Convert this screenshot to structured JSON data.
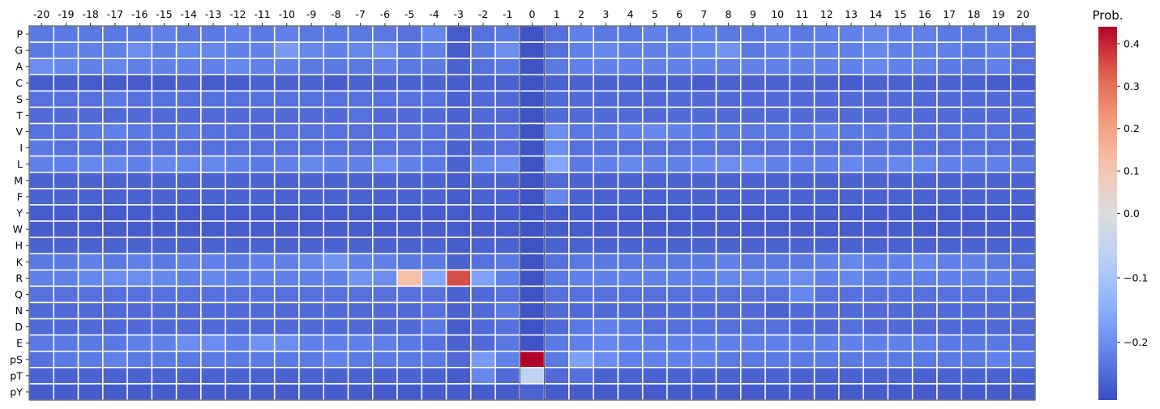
{
  "chart_data": {
    "type": "heatmap",
    "x_ticks": [
      "-20",
      "-19",
      "-18",
      "-17",
      "-16",
      "-15",
      "-14",
      "-13",
      "-12",
      "-11",
      "-10",
      "-9",
      "-8",
      "-7",
      "-6",
      "-5",
      "-4",
      "-3",
      "-2",
      "-1",
      "0",
      "1",
      "2",
      "3",
      "4",
      "5",
      "6",
      "7",
      "8",
      "9",
      "10",
      "11",
      "12",
      "13",
      "14",
      "15",
      "16",
      "17",
      "18",
      "19",
      "20"
    ],
    "y_ticks": [
      "P",
      "G",
      "A",
      "C",
      "S",
      "T",
      "V",
      "I",
      "L",
      "M",
      "F",
      "Y",
      "W",
      "H",
      "K",
      "R",
      "Q",
      "N",
      "D",
      "E",
      "pS",
      "pT",
      "pY"
    ],
    "x_axis_position": "top",
    "colormap": "coolwarm",
    "colorbar": {
      "title": "Prob.",
      "range": [
        -0.29,
        0.44
      ],
      "ticks": [
        -0.2,
        -0.1,
        0.0,
        0.1,
        0.2,
        0.3,
        0.4
      ],
      "tick_labels": [
        "−0.2",
        "−0.1",
        "0.0",
        "0.1",
        "0.2",
        "0.3",
        "0.4"
      ],
      "position": "right"
    },
    "values": [
      [
        -0.23,
        -0.23,
        -0.23,
        -0.23,
        -0.23,
        -0.22,
        -0.23,
        -0.23,
        -0.22,
        -0.23,
        -0.22,
        -0.23,
        -0.23,
        -0.23,
        -0.23,
        -0.24,
        -0.21,
        -0.27,
        -0.24,
        -0.23,
        -0.28,
        -0.24,
        -0.22,
        -0.23,
        -0.23,
        -0.22,
        -0.23,
        -0.22,
        -0.23,
        -0.23,
        -0.22,
        -0.23,
        -0.22,
        -0.22,
        -0.21,
        -0.22,
        -0.22,
        -0.23,
        -0.23,
        -0.23,
        -0.24
      ],
      [
        -0.23,
        -0.22,
        -0.22,
        -0.22,
        -0.2,
        -0.22,
        -0.21,
        -0.21,
        -0.22,
        -0.22,
        -0.18,
        -0.21,
        -0.22,
        -0.21,
        -0.2,
        -0.23,
        -0.22,
        -0.27,
        -0.23,
        -0.2,
        -0.28,
        -0.24,
        -0.22,
        -0.21,
        -0.22,
        -0.22,
        -0.22,
        -0.21,
        -0.19,
        -0.23,
        -0.22,
        -0.22,
        -0.22,
        -0.22,
        -0.21,
        -0.22,
        -0.22,
        -0.22,
        -0.23,
        -0.22,
        -0.24
      ],
      [
        -0.2,
        -0.21,
        -0.22,
        -0.21,
        -0.22,
        -0.22,
        -0.22,
        -0.22,
        -0.21,
        -0.22,
        -0.22,
        -0.23,
        -0.23,
        -0.23,
        -0.22,
        -0.23,
        -0.23,
        -0.26,
        -0.24,
        -0.23,
        -0.28,
        -0.23,
        -0.22,
        -0.22,
        -0.22,
        -0.22,
        -0.22,
        -0.22,
        -0.22,
        -0.22,
        -0.22,
        -0.22,
        -0.22,
        -0.22,
        -0.21,
        -0.22,
        -0.22,
        -0.23,
        -0.23,
        -0.22,
        -0.24
      ],
      [
        -0.27,
        -0.27,
        -0.27,
        -0.27,
        -0.27,
        -0.27,
        -0.26,
        -0.27,
        -0.27,
        -0.26,
        -0.26,
        -0.26,
        -0.27,
        -0.26,
        -0.26,
        -0.26,
        -0.26,
        -0.27,
        -0.26,
        -0.26,
        -0.28,
        -0.26,
        -0.26,
        -0.26,
        -0.26,
        -0.26,
        -0.26,
        -0.27,
        -0.26,
        -0.26,
        -0.26,
        -0.26,
        -0.26,
        -0.27,
        -0.26,
        -0.26,
        -0.26,
        -0.26,
        -0.26,
        -0.27,
        -0.27
      ],
      [
        -0.24,
        -0.24,
        -0.24,
        -0.23,
        -0.24,
        -0.24,
        -0.24,
        -0.24,
        -0.24,
        -0.24,
        -0.24,
        -0.24,
        -0.24,
        -0.24,
        -0.24,
        -0.24,
        -0.24,
        -0.26,
        -0.25,
        -0.25,
        -0.28,
        -0.25,
        -0.25,
        -0.25,
        -0.25,
        -0.25,
        -0.25,
        -0.25,
        -0.25,
        -0.25,
        -0.25,
        -0.25,
        -0.25,
        -0.25,
        -0.25,
        -0.25,
        -0.25,
        -0.25,
        -0.25,
        -0.25,
        -0.25
      ],
      [
        -0.25,
        -0.25,
        -0.25,
        -0.25,
        -0.25,
        -0.25,
        -0.25,
        -0.25,
        -0.25,
        -0.25,
        -0.25,
        -0.25,
        -0.25,
        -0.24,
        -0.25,
        -0.25,
        -0.25,
        -0.26,
        -0.25,
        -0.25,
        -0.28,
        -0.25,
        -0.25,
        -0.25,
        -0.25,
        -0.25,
        -0.25,
        -0.25,
        -0.25,
        -0.25,
        -0.25,
        -0.25,
        -0.25,
        -0.25,
        -0.25,
        -0.25,
        -0.25,
        -0.25,
        -0.25,
        -0.25,
        -0.25
      ],
      [
        -0.24,
        -0.24,
        -0.23,
        -0.22,
        -0.23,
        -0.24,
        -0.23,
        -0.24,
        -0.24,
        -0.25,
        -0.24,
        -0.24,
        -0.24,
        -0.24,
        -0.24,
        -0.24,
        -0.24,
        -0.25,
        -0.25,
        -0.24,
        -0.28,
        -0.2,
        -0.23,
        -0.23,
        -0.22,
        -0.21,
        -0.22,
        -0.23,
        -0.23,
        -0.23,
        -0.23,
        -0.23,
        -0.22,
        -0.23,
        -0.23,
        -0.23,
        -0.24,
        -0.24,
        -0.24,
        -0.24,
        -0.25
      ],
      [
        -0.23,
        -0.24,
        -0.24,
        -0.24,
        -0.24,
        -0.24,
        -0.24,
        -0.24,
        -0.24,
        -0.24,
        -0.24,
        -0.24,
        -0.24,
        -0.24,
        -0.24,
        -0.24,
        -0.24,
        -0.26,
        -0.25,
        -0.24,
        -0.28,
        -0.2,
        -0.24,
        -0.24,
        -0.24,
        -0.24,
        -0.24,
        -0.24,
        -0.24,
        -0.24,
        -0.24,
        -0.24,
        -0.24,
        -0.24,
        -0.24,
        -0.24,
        -0.24,
        -0.24,
        -0.24,
        -0.24,
        -0.25
      ],
      [
        -0.22,
        -0.22,
        -0.21,
        -0.21,
        -0.22,
        -0.21,
        -0.21,
        -0.21,
        -0.22,
        -0.23,
        -0.22,
        -0.21,
        -0.22,
        -0.22,
        -0.2,
        -0.22,
        -0.23,
        -0.26,
        -0.21,
        -0.2,
        -0.28,
        -0.16,
        -0.23,
        -0.22,
        -0.21,
        -0.22,
        -0.22,
        -0.21,
        -0.2,
        -0.2,
        -0.22,
        -0.22,
        -0.22,
        -0.21,
        -0.22,
        -0.21,
        -0.21,
        -0.22,
        -0.22,
        -0.22,
        -0.23
      ],
      [
        -0.26,
        -0.26,
        -0.26,
        -0.26,
        -0.26,
        -0.26,
        -0.26,
        -0.26,
        -0.26,
        -0.26,
        -0.26,
        -0.26,
        -0.26,
        -0.26,
        -0.26,
        -0.26,
        -0.26,
        -0.27,
        -0.26,
        -0.26,
        -0.28,
        -0.25,
        -0.26,
        -0.26,
        -0.26,
        -0.26,
        -0.26,
        -0.26,
        -0.26,
        -0.26,
        -0.26,
        -0.26,
        -0.26,
        -0.26,
        -0.26,
        -0.26,
        -0.26,
        -0.26,
        -0.26,
        -0.26,
        -0.26
      ],
      [
        -0.26,
        -0.26,
        -0.26,
        -0.26,
        -0.26,
        -0.26,
        -0.26,
        -0.26,
        -0.26,
        -0.26,
        -0.26,
        -0.26,
        -0.26,
        -0.26,
        -0.26,
        -0.26,
        -0.26,
        -0.27,
        -0.26,
        -0.26,
        -0.28,
        -0.21,
        -0.26,
        -0.26,
        -0.26,
        -0.26,
        -0.26,
        -0.26,
        -0.26,
        -0.26,
        -0.26,
        -0.26,
        -0.26,
        -0.26,
        -0.26,
        -0.26,
        -0.26,
        -0.26,
        -0.26,
        -0.26,
        -0.26
      ],
      [
        -0.27,
        -0.27,
        -0.27,
        -0.27,
        -0.27,
        -0.27,
        -0.27,
        -0.27,
        -0.27,
        -0.27,
        -0.27,
        -0.27,
        -0.27,
        -0.27,
        -0.27,
        -0.27,
        -0.27,
        -0.27,
        -0.27,
        -0.27,
        -0.28,
        -0.27,
        -0.27,
        -0.27,
        -0.27,
        -0.27,
        -0.27,
        -0.27,
        -0.27,
        -0.27,
        -0.27,
        -0.27,
        -0.27,
        -0.27,
        -0.27,
        -0.27,
        -0.27,
        -0.27,
        -0.27,
        -0.27,
        -0.27
      ],
      [
        -0.27,
        -0.27,
        -0.27,
        -0.27,
        -0.27,
        -0.27,
        -0.27,
        -0.27,
        -0.27,
        -0.27,
        -0.27,
        -0.27,
        -0.27,
        -0.27,
        -0.27,
        -0.27,
        -0.27,
        -0.27,
        -0.27,
        -0.27,
        -0.28,
        -0.27,
        -0.27,
        -0.27,
        -0.27,
        -0.27,
        -0.27,
        -0.27,
        -0.27,
        -0.27,
        -0.27,
        -0.27,
        -0.27,
        -0.27,
        -0.27,
        -0.27,
        -0.27,
        -0.27,
        -0.27,
        -0.27,
        -0.27
      ],
      [
        -0.26,
        -0.26,
        -0.26,
        -0.26,
        -0.26,
        -0.26,
        -0.26,
        -0.26,
        -0.26,
        -0.26,
        -0.26,
        -0.26,
        -0.26,
        -0.26,
        -0.26,
        -0.26,
        -0.26,
        -0.27,
        -0.26,
        -0.26,
        -0.28,
        -0.26,
        -0.26,
        -0.26,
        -0.26,
        -0.26,
        -0.26,
        -0.26,
        -0.26,
        -0.26,
        -0.26,
        -0.26,
        -0.26,
        -0.26,
        -0.26,
        -0.26,
        -0.26,
        -0.26,
        -0.26,
        -0.26,
        -0.26
      ],
      [
        -0.23,
        -0.23,
        -0.22,
        -0.23,
        -0.22,
        -0.23,
        -0.22,
        -0.22,
        -0.23,
        -0.22,
        -0.22,
        -0.21,
        -0.19,
        -0.22,
        -0.22,
        -0.23,
        -0.23,
        -0.26,
        -0.24,
        -0.23,
        -0.28,
        -0.24,
        -0.23,
        -0.23,
        -0.23,
        -0.23,
        -0.23,
        -0.23,
        -0.22,
        -0.23,
        -0.23,
        -0.23,
        -0.22,
        -0.21,
        -0.22,
        -0.22,
        -0.21,
        -0.22,
        -0.22,
        -0.23,
        -0.24
      ],
      [
        -0.22,
        -0.22,
        -0.21,
        -0.2,
        -0.2,
        -0.21,
        -0.22,
        -0.21,
        -0.22,
        -0.22,
        -0.22,
        -0.22,
        -0.22,
        -0.19,
        -0.2,
        0.12,
        -0.16,
        0.35,
        -0.17,
        -0.22,
        -0.28,
        -0.23,
        -0.22,
        -0.22,
        -0.22,
        -0.22,
        -0.22,
        -0.22,
        -0.21,
        -0.21,
        -0.21,
        -0.2,
        -0.22,
        -0.21,
        -0.22,
        -0.22,
        -0.22,
        -0.22,
        -0.22,
        -0.22,
        -0.23
      ],
      [
        -0.24,
        -0.24,
        -0.24,
        -0.24,
        -0.24,
        -0.24,
        -0.24,
        -0.24,
        -0.24,
        -0.24,
        -0.24,
        -0.24,
        -0.24,
        -0.24,
        -0.24,
        -0.24,
        -0.24,
        -0.26,
        -0.25,
        -0.24,
        -0.28,
        -0.24,
        -0.24,
        -0.24,
        -0.24,
        -0.24,
        -0.24,
        -0.24,
        -0.24,
        -0.24,
        -0.24,
        -0.21,
        -0.24,
        -0.24,
        -0.24,
        -0.24,
        -0.24,
        -0.24,
        -0.24,
        -0.24,
        -0.25
      ],
      [
        -0.25,
        -0.25,
        -0.25,
        -0.25,
        -0.25,
        -0.25,
        -0.25,
        -0.25,
        -0.25,
        -0.25,
        -0.25,
        -0.25,
        -0.25,
        -0.25,
        -0.25,
        -0.25,
        -0.24,
        -0.26,
        -0.25,
        -0.23,
        -0.28,
        -0.25,
        -0.25,
        -0.25,
        -0.25,
        -0.25,
        -0.25,
        -0.25,
        -0.25,
        -0.25,
        -0.26,
        -0.25,
        -0.25,
        -0.25,
        -0.25,
        -0.25,
        -0.25,
        -0.25,
        -0.25,
        -0.25,
        -0.25
      ],
      [
        -0.25,
        -0.25,
        -0.25,
        -0.25,
        -0.25,
        -0.25,
        -0.25,
        -0.25,
        -0.25,
        -0.25,
        -0.25,
        -0.25,
        -0.25,
        -0.25,
        -0.25,
        -0.25,
        -0.23,
        -0.27,
        -0.25,
        -0.24,
        -0.28,
        -0.25,
        -0.23,
        -0.22,
        -0.23,
        -0.24,
        -0.24,
        -0.24,
        -0.24,
        -0.24,
        -0.24,
        -0.25,
        -0.25,
        -0.24,
        -0.25,
        -0.25,
        -0.25,
        -0.25,
        -0.25,
        -0.25,
        -0.25
      ],
      [
        -0.23,
        -0.23,
        -0.23,
        -0.23,
        -0.22,
        -0.22,
        -0.2,
        -0.2,
        -0.22,
        -0.19,
        -0.2,
        -0.22,
        -0.22,
        -0.22,
        -0.22,
        -0.23,
        -0.24,
        -0.26,
        -0.25,
        -0.23,
        -0.28,
        -0.23,
        -0.22,
        -0.21,
        -0.22,
        -0.22,
        -0.22,
        -0.22,
        -0.22,
        -0.22,
        -0.22,
        -0.22,
        -0.22,
        -0.22,
        -0.22,
        -0.22,
        -0.22,
        -0.23,
        -0.23,
        -0.23,
        -0.24
      ],
      [
        -0.24,
        -0.23,
        -0.23,
        -0.22,
        -0.23,
        -0.23,
        -0.23,
        -0.23,
        -0.23,
        -0.23,
        -0.23,
        -0.23,
        -0.22,
        -0.23,
        -0.23,
        -0.23,
        -0.23,
        -0.25,
        -0.18,
        -0.22,
        0.44,
        -0.23,
        -0.17,
        -0.2,
        -0.22,
        -0.22,
        -0.22,
        -0.22,
        -0.23,
        -0.23,
        -0.23,
        -0.23,
        -0.23,
        -0.23,
        -0.23,
        -0.23,
        -0.23,
        -0.23,
        -0.23,
        -0.22,
        -0.23
      ],
      [
        -0.26,
        -0.26,
        -0.26,
        -0.26,
        -0.26,
        -0.26,
        -0.26,
        -0.26,
        -0.26,
        -0.26,
        -0.26,
        -0.26,
        -0.26,
        -0.26,
        -0.26,
        -0.26,
        -0.26,
        -0.27,
        -0.21,
        -0.25,
        -0.06,
        -0.25,
        -0.24,
        -0.26,
        -0.26,
        -0.26,
        -0.26,
        -0.26,
        -0.26,
        -0.26,
        -0.26,
        -0.26,
        -0.26,
        -0.26,
        -0.26,
        -0.26,
        -0.26,
        -0.26,
        -0.26,
        -0.26,
        -0.26
      ],
      [
        -0.27,
        -0.27,
        -0.27,
        -0.27,
        -0.27,
        -0.27,
        -0.27,
        -0.27,
        -0.27,
        -0.27,
        -0.27,
        -0.27,
        -0.27,
        -0.27,
        -0.27,
        -0.27,
        -0.27,
        -0.27,
        -0.27,
        -0.27,
        -0.26,
        -0.27,
        -0.27,
        -0.27,
        -0.27,
        -0.27,
        -0.27,
        -0.27,
        -0.27,
        -0.27,
        -0.27,
        -0.27,
        -0.27,
        -0.27,
        -0.27,
        -0.27,
        -0.27,
        -0.27,
        -0.27,
        -0.27,
        -0.27
      ]
    ]
  }
}
